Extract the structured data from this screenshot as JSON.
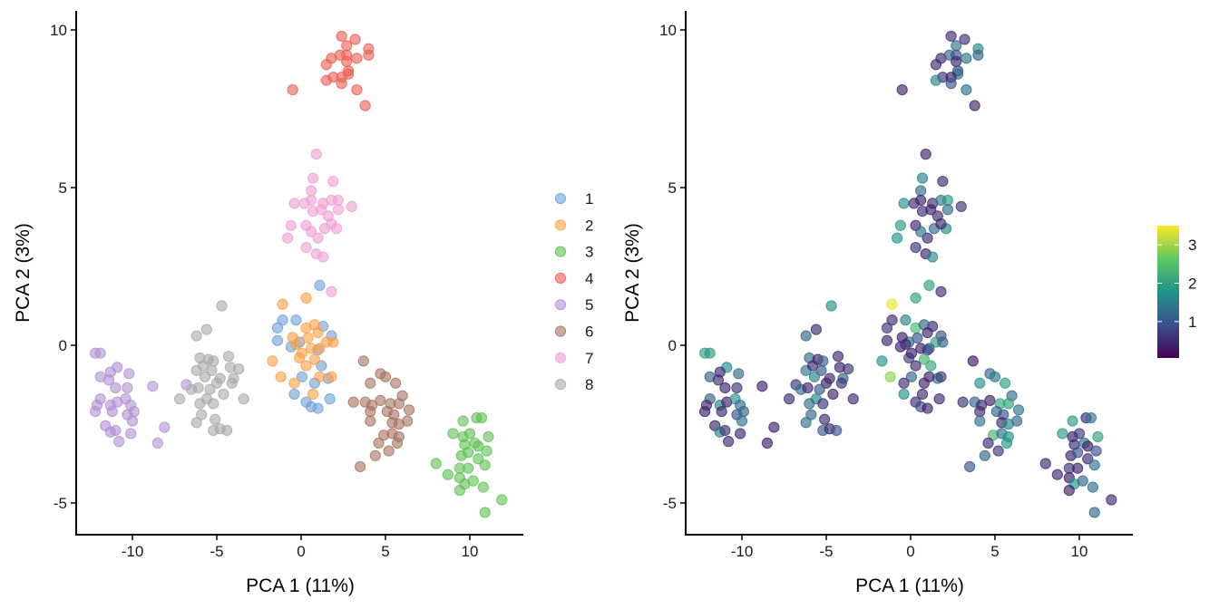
{
  "chart_data": [
    {
      "type": "scatter",
      "panel": "left",
      "color_by": "cluster",
      "xlabel": "PCA 1 (11%)",
      "ylabel": "PCA 2 (3%)",
      "xlim": [
        -13.3,
        13.2
      ],
      "ylim": [
        -6.0,
        10.6
      ],
      "xticks": [
        -10,
        -5,
        0,
        5,
        10
      ],
      "yticks": [
        -5,
        0,
        5,
        10
      ],
      "grid": false,
      "legend_position": "right",
      "point_alpha": 0.6
    },
    {
      "type": "scatter",
      "panel": "right",
      "color_by": "continuous value (viridis)",
      "xlabel": "PCA 1 (11%)",
      "ylabel": "PCA 2 (3%)",
      "xlim": [
        -13.3,
        13.2
      ],
      "ylim": [
        -6.0,
        10.6
      ],
      "xticks": [
        -10,
        -5,
        0,
        5,
        10
      ],
      "yticks": [
        -5,
        0,
        5,
        10
      ],
      "grid": false,
      "colorbar": {
        "ticks": [
          1,
          2,
          3
        ],
        "range": [
          0.05,
          3.5
        ],
        "colormap": "viridis",
        "position": "right"
      },
      "point_alpha": 0.6
    }
  ],
  "clusters": [
    {
      "label": "1",
      "color": "#6f9fd8",
      "points": [
        [
          1.1,
          1.9,
          2.0
        ],
        [
          -1.1,
          0.8,
          0.5
        ],
        [
          -0.3,
          0.8,
          1.6
        ],
        [
          -1.4,
          0.55,
          0.6
        ],
        [
          -1.4,
          0.15,
          0.4
        ],
        [
          1.3,
          0.6,
          0.5
        ],
        [
          1.8,
          0.3,
          0.9
        ],
        [
          -0.6,
          -0.05,
          0.4
        ],
        [
          1.0,
          -0.15,
          0.6
        ],
        [
          1.2,
          -0.65,
          2.1
        ],
        [
          0.05,
          -1.0,
          1.2
        ],
        [
          0.8,
          -1.2,
          0.4
        ],
        [
          1.6,
          -1.05,
          1.5
        ],
        [
          -0.4,
          -1.55,
          1.8
        ],
        [
          0.3,
          -1.8,
          0.5
        ],
        [
          0.6,
          -1.95,
          0.9
        ],
        [
          1.0,
          -2.0,
          0.4
        ],
        [
          1.7,
          -1.7,
          0.5
        ],
        [
          -0.1,
          0.1,
          1.3
        ]
      ]
    },
    {
      "label": "2",
      "color": "#fd9e42",
      "points": [
        [
          -1.1,
          1.3,
          3.4
        ],
        [
          0.3,
          1.5,
          2.0
        ],
        [
          -1.7,
          -0.5,
          1.8
        ],
        [
          -1.2,
          -1.0,
          2.9
        ],
        [
          -0.4,
          -1.2,
          0.5
        ],
        [
          1.8,
          -1.0,
          0.6
        ],
        [
          1.1,
          -1.0,
          0.4
        ],
        [
          0.7,
          -1.55,
          0.5
        ],
        [
          0.3,
          0.55,
          2.4
        ],
        [
          0.8,
          0.65,
          1.2
        ],
        [
          -0.5,
          0.25,
          0.4
        ],
        [
          0.4,
          0.23,
          1.0
        ],
        [
          1.0,
          0.4,
          0.5
        ],
        [
          1.5,
          0.1,
          2.0
        ],
        [
          1.9,
          0.1,
          1.1
        ],
        [
          -0.3,
          0.03,
          0.5
        ],
        [
          0.6,
          -0.1,
          0.4
        ],
        [
          -0.1,
          -0.4,
          0.8
        ],
        [
          0.8,
          -0.45,
          2.3
        ],
        [
          0.3,
          -0.65,
          0.5
        ],
        [
          0.05,
          -0.25,
          0.4
        ],
        [
          1.1,
          -0.1,
          1.0
        ]
      ]
    },
    {
      "label": "3",
      "color": "#5fbf52",
      "points": [
        [
          9.6,
          -2.4,
          1.9
        ],
        [
          10.4,
          -2.3,
          0.5
        ],
        [
          10.7,
          -2.3,
          1.4
        ],
        [
          9.0,
          -2.8,
          1.9
        ],
        [
          9.6,
          -2.9,
          0.4
        ],
        [
          10.0,
          -2.8,
          0.6
        ],
        [
          11.1,
          -2.9,
          2.0
        ],
        [
          9.7,
          -3.15,
          0.5
        ],
        [
          10.3,
          -3.1,
          1.3
        ],
        [
          10.5,
          -3.2,
          0.4
        ],
        [
          11.0,
          -3.35,
          0.9
        ],
        [
          9.5,
          -3.5,
          0.4
        ],
        [
          9.9,
          -3.4,
          1.0
        ],
        [
          10.5,
          -3.6,
          0.5
        ],
        [
          10.9,
          -3.8,
          1.4
        ],
        [
          8.0,
          -3.75,
          0.5
        ],
        [
          9.4,
          -3.9,
          0.6
        ],
        [
          9.9,
          -3.9,
          0.4
        ],
        [
          8.7,
          -4.1,
          0.5
        ],
        [
          9.4,
          -4.2,
          0.3
        ],
        [
          9.7,
          -4.4,
          1.8
        ],
        [
          10.2,
          -4.3,
          1.2
        ],
        [
          9.4,
          -4.6,
          0.4
        ],
        [
          10.8,
          -4.5,
          1.3
        ],
        [
          11.9,
          -4.9,
          0.5
        ],
        [
          10.9,
          -5.3,
          1.2
        ]
      ]
    },
    {
      "label": "4",
      "color": "#ef5c53",
      "points": [
        [
          2.4,
          9.8,
          0.5
        ],
        [
          3.2,
          9.7,
          0.6
        ],
        [
          2.7,
          9.5,
          1.3
        ],
        [
          4.0,
          9.4,
          1.6
        ],
        [
          4.0,
          9.2,
          1.2
        ],
        [
          1.8,
          9.1,
          0.5
        ],
        [
          2.3,
          9.2,
          1.2
        ],
        [
          2.7,
          9.2,
          0.9
        ],
        [
          3.3,
          9.1,
          1.4
        ],
        [
          2.7,
          9.0,
          0.4
        ],
        [
          1.5,
          8.9,
          0.5
        ],
        [
          2.8,
          8.7,
          0.8
        ],
        [
          2.8,
          8.6,
          1.3
        ],
        [
          1.9,
          8.5,
          0.6
        ],
        [
          2.4,
          8.5,
          0.4
        ],
        [
          1.5,
          8.4,
          1.6
        ],
        [
          2.4,
          8.3,
          1.0
        ],
        [
          -0.5,
          8.1,
          0.4
        ],
        [
          3.3,
          8.1,
          1.3
        ],
        [
          3.8,
          7.6,
          0.4
        ]
      ]
    },
    {
      "label": "5",
      "color": "#b190d2",
      "points": [
        [
          -12.2,
          -0.25,
          2.0
        ],
        [
          -11.9,
          -0.25,
          1.9
        ],
        [
          -10.9,
          -0.7,
          1.7
        ],
        [
          -11.3,
          -0.85,
          0.5
        ],
        [
          -10.2,
          -0.9,
          1.3
        ],
        [
          -11.9,
          -1.0,
          1.2
        ],
        [
          -11.4,
          -1.1,
          0.5
        ],
        [
          -11.0,
          -1.35,
          0.4
        ],
        [
          -10.3,
          -1.35,
          0.6
        ],
        [
          -8.8,
          -1.3,
          0.4
        ],
        [
          -11.9,
          -1.7,
          1.1
        ],
        [
          -12.1,
          -1.9,
          0.5
        ],
        [
          -11.3,
          -1.9,
          1.6
        ],
        [
          -10.9,
          -1.8,
          0.4
        ],
        [
          -10.4,
          -1.7,
          1.8
        ],
        [
          -10.1,
          -1.9,
          1.3
        ],
        [
          -12.2,
          -2.1,
          0.4
        ],
        [
          -11.2,
          -2.1,
          0.5
        ],
        [
          -10.3,
          -2.2,
          0.9
        ],
        [
          -9.9,
          -2.1,
          1.2
        ],
        [
          -10.0,
          -2.4,
          1.4
        ],
        [
          -11.6,
          -2.55,
          0.4
        ],
        [
          -11.3,
          -2.75,
          1.6
        ],
        [
          -11.0,
          -2.7,
          0.6
        ],
        [
          -10.1,
          -2.8,
          0.5
        ],
        [
          -8.1,
          -2.6,
          0.4
        ],
        [
          -10.8,
          -3.05,
          0.5
        ],
        [
          -8.5,
          -3.1,
          0.4
        ],
        [
          -6.8,
          -1.25,
          0.6
        ]
      ]
    },
    {
      "label": "6",
      "color": "#a6725f",
      "points": [
        [
          3.7,
          -0.5,
          0.3
        ],
        [
          4.7,
          -0.9,
          1.2
        ],
        [
          5.0,
          -1.0,
          1.4
        ],
        [
          5.6,
          -1.2,
          2.0
        ],
        [
          4.1,
          -1.2,
          1.8
        ],
        [
          3.1,
          -1.8,
          0.6
        ],
        [
          3.8,
          -1.8,
          1.2
        ],
        [
          4.2,
          -1.9,
          0.5
        ],
        [
          4.7,
          -1.75,
          0.4
        ],
        [
          5.3,
          -1.85,
          2.1
        ],
        [
          6.0,
          -1.6,
          1.3
        ],
        [
          5.8,
          -1.85,
          2.0
        ],
        [
          6.4,
          -2.05,
          1.4
        ],
        [
          4.1,
          -2.1,
          0.5
        ],
        [
          5.1,
          -2.1,
          1.2
        ],
        [
          5.5,
          -2.2,
          0.9
        ],
        [
          4.1,
          -2.4,
          1.3
        ],
        [
          5.4,
          -2.45,
          0.5
        ],
        [
          5.8,
          -2.5,
          1.6
        ],
        [
          6.3,
          -2.4,
          1.2
        ],
        [
          4.9,
          -2.85,
          2.3
        ],
        [
          5.4,
          -2.8,
          1.3
        ],
        [
          5.8,
          -2.9,
          1.8
        ],
        [
          4.6,
          -3.1,
          0.5
        ],
        [
          5.7,
          -3.1,
          1.8
        ],
        [
          5.2,
          -3.35,
          0.6
        ],
        [
          4.4,
          -3.5,
          1.2
        ],
        [
          3.5,
          -3.85,
          1.0
        ]
      ]
    },
    {
      "label": "7",
      "color": "#ef9dd4",
      "points": [
        [
          0.9,
          6.06,
          0.4
        ],
        [
          0.7,
          5.3,
          1.6
        ],
        [
          1.9,
          5.2,
          0.5
        ],
        [
          0.6,
          4.9,
          1.2
        ],
        [
          -0.4,
          4.5,
          1.8
        ],
        [
          0.2,
          4.5,
          0.5
        ],
        [
          0.6,
          4.6,
          0.4
        ],
        [
          1.3,
          4.5,
          0.5
        ],
        [
          1.8,
          4.6,
          1.5
        ],
        [
          2.2,
          4.6,
          1.9
        ],
        [
          3.0,
          4.4,
          0.6
        ],
        [
          0.7,
          4.25,
          0.5
        ],
        [
          1.2,
          4.3,
          0.4
        ],
        [
          2.2,
          4.3,
          1.3
        ],
        [
          1.6,
          4.1,
          0.5
        ],
        [
          -0.6,
          3.8,
          1.9
        ],
        [
          -0.8,
          3.4,
          1.8
        ],
        [
          0.3,
          3.8,
          0.4
        ],
        [
          1.4,
          3.7,
          1.2
        ],
        [
          2.1,
          3.7,
          1.6
        ],
        [
          1.0,
          3.4,
          0.5
        ],
        [
          0.3,
          3.1,
          0.6
        ],
        [
          0.9,
          2.9,
          0.4
        ],
        [
          1.3,
          2.8,
          1.7
        ],
        [
          1.8,
          3.85,
          0.5
        ],
        [
          0.6,
          3.6,
          1.3
        ],
        [
          1.8,
          1.7,
          0.5
        ]
      ]
    },
    {
      "label": "8",
      "color": "#a8a8a8",
      "points": [
        [
          -4.7,
          1.25,
          1.8
        ],
        [
          -5.6,
          0.5,
          0.5
        ],
        [
          -6.2,
          0.3,
          1.2
        ],
        [
          -6.0,
          -0.4,
          1.3
        ],
        [
          -5.5,
          -0.45,
          0.4
        ],
        [
          -5.2,
          -0.5,
          1.1
        ],
        [
          -4.3,
          -0.35,
          0.5
        ],
        [
          -6.2,
          -0.8,
          1.4
        ],
        [
          -5.8,
          -0.65,
          0.5
        ],
        [
          -5.3,
          -0.8,
          0.9
        ],
        [
          -4.2,
          -0.7,
          0.4
        ],
        [
          -3.7,
          -0.75,
          0.6
        ],
        [
          -5.7,
          -1.0,
          1.6
        ],
        [
          -4.8,
          -1.05,
          0.5
        ],
        [
          -4.0,
          -1.05,
          1.2
        ],
        [
          -5.0,
          -1.2,
          0.4
        ],
        [
          -4.1,
          -1.2,
          0.6
        ],
        [
          -6.5,
          -1.4,
          1.3
        ],
        [
          -6.1,
          -1.35,
          0.5
        ],
        [
          -5.4,
          -1.4,
          1.0
        ],
        [
          -7.2,
          -1.7,
          0.5
        ],
        [
          -5.6,
          -1.7,
          1.6
        ],
        [
          -4.6,
          -1.55,
          0.4
        ],
        [
          -3.4,
          -1.7,
          0.5
        ],
        [
          -6.0,
          -1.85,
          1.3
        ],
        [
          -5.2,
          -1.85,
          0.6
        ],
        [
          -5.9,
          -2.2,
          1.2
        ],
        [
          -5.1,
          -2.35,
          0.5
        ],
        [
          -6.2,
          -2.45,
          1.3
        ],
        [
          -5.2,
          -2.7,
          1.1
        ],
        [
          -4.8,
          -2.65,
          0.5
        ],
        [
          -4.4,
          -2.7,
          0.9
        ]
      ]
    }
  ]
}
